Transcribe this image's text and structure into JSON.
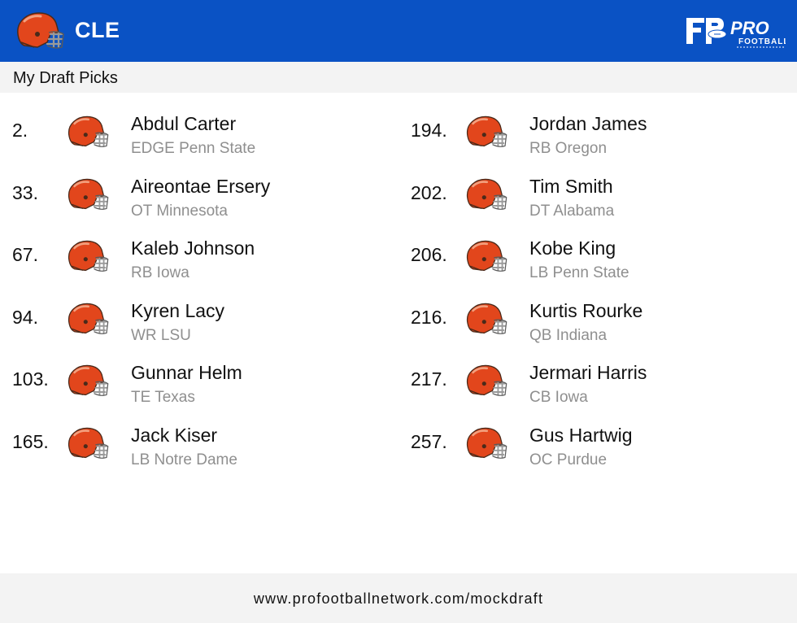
{
  "header": {
    "team_abbr": "CLE",
    "team_logo_icon": "browns-helmet-icon",
    "brand_logo_icon": "pfn-logo-icon",
    "brand_text": "PRO",
    "brand_subtext": "FOOTBALL",
    "background_color": "#0a52c4"
  },
  "section": {
    "title": "My Draft Picks"
  },
  "picks_left": [
    {
      "number": "2.",
      "name": "Abdul Carter",
      "detail": "EDGE Penn State"
    },
    {
      "number": "33.",
      "name": "Aireontae Ersery",
      "detail": "OT Minnesota"
    },
    {
      "number": "67.",
      "name": "Kaleb Johnson",
      "detail": "RB Iowa"
    },
    {
      "number": "94.",
      "name": "Kyren Lacy",
      "detail": "WR LSU"
    },
    {
      "number": "103.",
      "name": "Gunnar Helm",
      "detail": "TE Texas"
    },
    {
      "number": "165.",
      "name": "Jack Kiser",
      "detail": "LB Notre Dame"
    }
  ],
  "picks_right": [
    {
      "number": "194.",
      "name": "Jordan James",
      "detail": "RB Oregon"
    },
    {
      "number": "202.",
      "name": "Tim Smith",
      "detail": "DT Alabama"
    },
    {
      "number": "206.",
      "name": "Kobe King",
      "detail": "LB Penn State"
    },
    {
      "number": "216.",
      "name": "Kurtis Rourke",
      "detail": "QB Indiana"
    },
    {
      "number": "217.",
      "name": "Jermari Harris",
      "detail": "CB Iowa"
    },
    {
      "number": "257.",
      "name": "Gus Hartwig",
      "detail": "OC Purdue"
    }
  ],
  "footer": {
    "url": "www.profootballnetwork.com/mockdraft"
  },
  "colors": {
    "helmet_orange": "#e2461c",
    "facemask_gray": "#9a9a9a",
    "detail_text": "#8f8f8f"
  }
}
